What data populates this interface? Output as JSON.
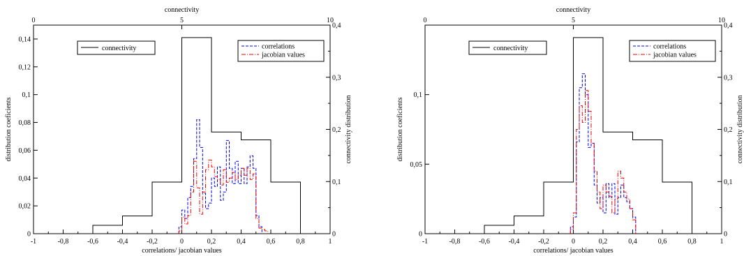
{
  "chart_data": [
    {
      "type": "line",
      "xlabel": "correlations/ jacobian values",
      "ylabel": "distribution coeficients",
      "ylabel_right": "connectivity distribution",
      "xlabel_top": "connectivity",
      "xlim": [
        -1,
        1
      ],
      "ylim": [
        0,
        0.15
      ],
      "top_xlim": [
        0,
        10
      ],
      "right_ylim": [
        0,
        0.4
      ],
      "x_ticks": [
        "-1",
        "-0,8",
        "-0,6",
        "-0,4",
        "-0,2",
        "0",
        "0,2",
        "0,4",
        "0,6",
        "0,8",
        "1"
      ],
      "y_ticks": [
        "0",
        "0,02",
        "0,04",
        "0,06",
        "0,08",
        "0,1",
        "0,12",
        "0,14"
      ],
      "y_tick_values": [
        0,
        0.02,
        0.04,
        0.06,
        0.08,
        0.1,
        0.12,
        0.14
      ],
      "top_ticks": [
        "0",
        "5",
        "10"
      ],
      "right_ticks": [
        "0",
        "0,1",
        "0,2",
        "0,3",
        "0,4"
      ],
      "legend_left": [
        "connectivity"
      ],
      "legend_right": [
        "correlations",
        "jacobian values"
      ],
      "series": [
        {
          "name": "connectivity",
          "style": "step-solid",
          "color": "#000000",
          "axis": "right",
          "x": [
            -0.6,
            -0.4,
            -0.2,
            0.0,
            0.2,
            0.4,
            0.6,
            0.8
          ],
          "values": [
            0.016,
            0.034,
            0.099,
            0.376,
            0.195,
            0.18,
            0.099,
            0
          ]
        },
        {
          "name": "correlations",
          "style": "step-dashed",
          "color": "#0000ee",
          "axis": "left",
          "x": [
            -0.02,
            0.0,
            0.02,
            0.04,
            0.06,
            0.08,
            0.1,
            0.12,
            0.14,
            0.16,
            0.18,
            0.2,
            0.22,
            0.24,
            0.26,
            0.28,
            0.3,
            0.32,
            0.34,
            0.36,
            0.38,
            0.4,
            0.42,
            0.44,
            0.46,
            0.48,
            0.5,
            0.52,
            0.54
          ],
          "values": [
            0.005,
            0.017,
            0.011,
            0.026,
            0.034,
            0.054,
            0.082,
            0.062,
            0.029,
            0.018,
            0.022,
            0.04,
            0.034,
            0.048,
            0.024,
            0.03,
            0.067,
            0.047,
            0.036,
            0.052,
            0.036,
            0.047,
            0.036,
            0.048,
            0.056,
            0.047,
            0.013,
            0.005,
            0
          ]
        },
        {
          "name": "jacobian values",
          "style": "step-dashdot",
          "color": "#ee0000",
          "axis": "left",
          "x": [
            -0.02,
            0.0,
            0.02,
            0.04,
            0.06,
            0.08,
            0.1,
            0.12,
            0.14,
            0.16,
            0.18,
            0.2,
            0.22,
            0.24,
            0.26,
            0.28,
            0.3,
            0.32,
            0.34,
            0.36,
            0.38,
            0.4,
            0.42,
            0.44,
            0.46,
            0.48,
            0.5,
            0.52,
            0.54,
            0.56,
            0.58
          ],
          "values": [
            0.002,
            0.012,
            0.007,
            0.013,
            0.03,
            0.052,
            0.033,
            0.014,
            0.03,
            0.046,
            0.053,
            0.048,
            0.041,
            0.039,
            0.035,
            0.046,
            0.037,
            0.04,
            0.044,
            0.039,
            0.042,
            0.047,
            0.042,
            0.047,
            0.039,
            0.043,
            0.011,
            0.004,
            0.003,
            0.002,
            0
          ]
        }
      ]
    },
    {
      "type": "line",
      "xlabel": "correlations/ jacobian values",
      "ylabel": "distribution coeficients",
      "ylabel_right": "connectivity distribution",
      "xlabel_top": "connectivity",
      "xlim": [
        -1,
        1
      ],
      "ylim": [
        0,
        0.15
      ],
      "top_xlim": [
        0,
        10
      ],
      "right_ylim": [
        0,
        0.4
      ],
      "x_ticks": [
        "-1",
        "-0,8",
        "-0,6",
        "-0,4",
        "-0,2",
        "0",
        "0,2",
        "0,4",
        "0,6",
        "0,8",
        "1"
      ],
      "y_ticks": [
        "0",
        "0,05",
        "0,1"
      ],
      "y_tick_values": [
        0,
        0.05,
        0.1
      ],
      "top_ticks": [
        "0",
        "5",
        "10"
      ],
      "right_ticks": [
        "0",
        "0,1",
        "0,2",
        "0,3",
        "0,4"
      ],
      "legend_left": [
        "connectivity"
      ],
      "legend_right": [
        "correlations",
        "jacobian values"
      ],
      "series": [
        {
          "name": "connectivity",
          "style": "step-solid",
          "color": "#000000",
          "axis": "right",
          "x": [
            -0.6,
            -0.4,
            -0.2,
            0.0,
            0.2,
            0.4,
            0.6,
            0.8
          ],
          "values": [
            0.016,
            0.034,
            0.099,
            0.376,
            0.195,
            0.18,
            0.099,
            0
          ]
        },
        {
          "name": "correlations",
          "style": "step-dashed",
          "color": "#0000ee",
          "axis": "left",
          "x": [
            -0.02,
            0.0,
            0.02,
            0.04,
            0.06,
            0.08,
            0.1,
            0.12,
            0.14,
            0.16,
            0.18,
            0.2,
            0.22,
            0.24,
            0.26,
            0.28,
            0.3,
            0.32,
            0.34,
            0.36,
            0.38,
            0.4,
            0.42
          ],
          "values": [
            0.005,
            0.012,
            0.066,
            0.105,
            0.115,
            0.1,
            0.062,
            0.065,
            0.035,
            0.022,
            0.026,
            0.015,
            0.036,
            0.026,
            0.036,
            0.014,
            0.026,
            0.035,
            0.026,
            0.023,
            0.018,
            0.012,
            0
          ]
        },
        {
          "name": "jacobian values",
          "style": "step-dashdot",
          "color": "#ee0000",
          "axis": "left",
          "x": [
            -0.02,
            0.0,
            0.02,
            0.04,
            0.06,
            0.08,
            0.1,
            0.12,
            0.14,
            0.16,
            0.18,
            0.2,
            0.22,
            0.24,
            0.26,
            0.28,
            0.3,
            0.32,
            0.34,
            0.36,
            0.38,
            0.4,
            0.42
          ],
          "values": [
            0.003,
            0.015,
            0.075,
            0.092,
            0.08,
            0.103,
            0.088,
            0.065,
            0.045,
            0.03,
            0.018,
            0.035,
            0.03,
            0.027,
            0.015,
            0.025,
            0.045,
            0.04,
            0.03,
            0.025,
            0.018,
            0.01,
            0
          ]
        }
      ]
    }
  ]
}
